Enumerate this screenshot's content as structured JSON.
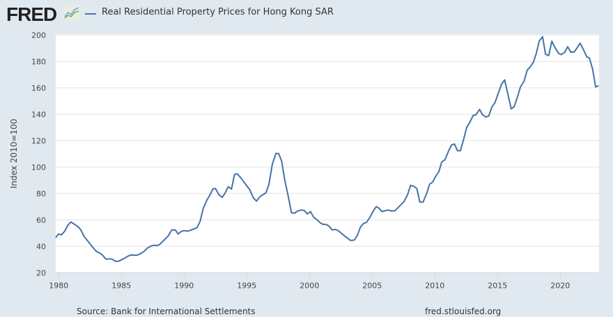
{
  "header": {
    "logo_text": "FRED",
    "title": "Real Residential Property Prices for Hong Kong SAR"
  },
  "footer": {
    "source": "Source: Bank for International Settlements",
    "site": "fred.stlouisfed.org"
  },
  "colors": {
    "series": "#4572a7",
    "background": "#e1e9f0",
    "grid": "#e3e3e3"
  },
  "chart_data": {
    "type": "line",
    "title": "Real Residential Property Prices for Hong Kong SAR",
    "xlabel": "",
    "ylabel": "Index 2010=100",
    "xlim": [
      1979.75,
      2023.1
    ],
    "ylim": [
      20,
      200
    ],
    "yticks": [
      "20",
      "40",
      "60",
      "80",
      "100",
      "120",
      "140",
      "160",
      "180",
      "200"
    ],
    "xticks": [
      "1980",
      "1985",
      "1990",
      "1995",
      "2000",
      "2005",
      "2010",
      "2015",
      "2020"
    ],
    "grid": "horizontal",
    "legend": "top-left",
    "series": [
      {
        "name": "Real Residential Property Prices for Hong Kong SAR",
        "x": [
          1979.76,
          1979.98,
          1980.22,
          1980.47,
          1980.72,
          1980.97,
          1981.24,
          1981.52,
          1981.74,
          1982.02,
          1982.32,
          1982.63,
          1983.0,
          1983.28,
          1983.5,
          1983.76,
          1984.02,
          1984.24,
          1984.54,
          1984.76,
          1985.13,
          1985.5,
          1985.78,
          1986.24,
          1986.52,
          1986.8,
          1987.08,
          1987.36,
          1987.58,
          1987.82,
          1988.06,
          1988.37,
          1988.74,
          1989.02,
          1989.3,
          1989.52,
          1989.8,
          1990.04,
          1990.28,
          1990.59,
          1991.02,
          1991.28,
          1991.52,
          1991.8,
          1992.08,
          1992.3,
          1992.5,
          1992.78,
          1993.04,
          1993.28,
          1993.52,
          1993.78,
          1994.02,
          1994.24,
          1994.54,
          1994.86,
          1995.22,
          1995.54,
          1995.78,
          1996.06,
          1996.52,
          1996.76,
          1997.04,
          1997.32,
          1997.54,
          1997.78,
          1998.04,
          1998.28,
          1998.56,
          1998.8,
          1999.08,
          1999.3,
          1999.58,
          1999.82,
          2000.08,
          2000.32,
          2000.59,
          2000.87,
          2001.09,
          2001.33,
          2001.58,
          2001.8,
          2002.08,
          2002.32,
          2002.72,
          2003.28,
          2003.56,
          2003.8,
          2004.06,
          2004.3,
          2004.54,
          2004.8,
          2005.09,
          2005.32,
          2005.54,
          2005.78,
          2006.24,
          2006.52,
          2006.8,
          2007.08,
          2007.54,
          2007.82,
          2008.06,
          2008.28,
          2008.56,
          2008.8,
          2009.06,
          2009.36,
          2009.58,
          2009.82,
          2010.08,
          2010.32,
          2010.54,
          2010.82,
          2011.09,
          2011.33,
          2011.56,
          2011.8,
          2012.04,
          2012.3,
          2012.54,
          2012.78,
          2013.06,
          2013.28,
          2013.56,
          2013.8,
          2014.06,
          2014.3,
          2014.54,
          2014.8,
          2015.04,
          2015.32,
          2015.56,
          2015.83,
          2016.09,
          2016.33,
          2016.58,
          2016.83,
          2017.11,
          2017.36,
          2017.59,
          2017.86,
          2018.09,
          2018.32,
          2018.59,
          2018.83,
          2019.08,
          2019.33,
          2019.58,
          2019.86,
          2020.09,
          2020.36,
          2020.59,
          2020.83,
          2021.09,
          2021.33,
          2021.58,
          2021.83,
          2022.11,
          2022.32,
          2022.58,
          2022.82,
          2023.06
        ],
        "y": [
          46.6,
          49.3,
          48.7,
          51.4,
          55.9,
          58.4,
          56.8,
          54.9,
          52.8,
          47.5,
          44.0,
          40.2,
          36.1,
          34.9,
          33.2,
          30.3,
          30.5,
          30.3,
          28.6,
          28.7,
          30.3,
          32.4,
          33.5,
          33.2,
          34.4,
          36.1,
          38.7,
          40.2,
          40.8,
          40.5,
          41.4,
          44.4,
          47.9,
          52.4,
          52.4,
          49.3,
          51.4,
          51.9,
          51.4,
          52.4,
          54.0,
          58.9,
          68.6,
          74.7,
          79.1,
          83.5,
          83.7,
          79.1,
          77.0,
          80.5,
          85.1,
          83.3,
          94.5,
          94.9,
          91.7,
          87.5,
          83.0,
          76.5,
          74.2,
          77.7,
          80.5,
          86.8,
          102.3,
          110.3,
          110.3,
          104.5,
          89.6,
          79.1,
          65.4,
          65.1,
          66.8,
          67.4,
          67.2,
          64.5,
          66.3,
          62.1,
          60.2,
          57.7,
          56.6,
          56.6,
          55.1,
          52.4,
          52.8,
          51.7,
          48.4,
          44.4,
          44.7,
          47.9,
          54.5,
          57.2,
          58.1,
          61.6,
          66.8,
          70.0,
          68.9,
          66.3,
          67.5,
          66.8,
          66.8,
          69.5,
          73.8,
          79.1,
          86.1,
          85.6,
          83.8,
          73.5,
          73.5,
          80.5,
          87.0,
          88.7,
          93.2,
          96.6,
          103.7,
          105.8,
          112.1,
          116.8,
          117.4,
          112.4,
          112.4,
          121.2,
          130.0,
          133.8,
          139.1,
          139.6,
          143.7,
          139.6,
          137.9,
          138.7,
          145.3,
          148.9,
          155.4,
          162.8,
          166.0,
          154.9,
          144.0,
          145.8,
          152.8,
          160.7,
          165.1,
          173.3,
          175.6,
          179.5,
          186.1,
          195.3,
          198.7,
          185.3,
          184.4,
          195.3,
          190.5,
          186.1,
          185.1,
          187.0,
          191.1,
          187.0,
          187.0,
          190.0,
          193.8,
          189.3,
          183.5,
          182.6,
          174.2,
          160.7,
          161.6
        ]
      }
    ]
  }
}
